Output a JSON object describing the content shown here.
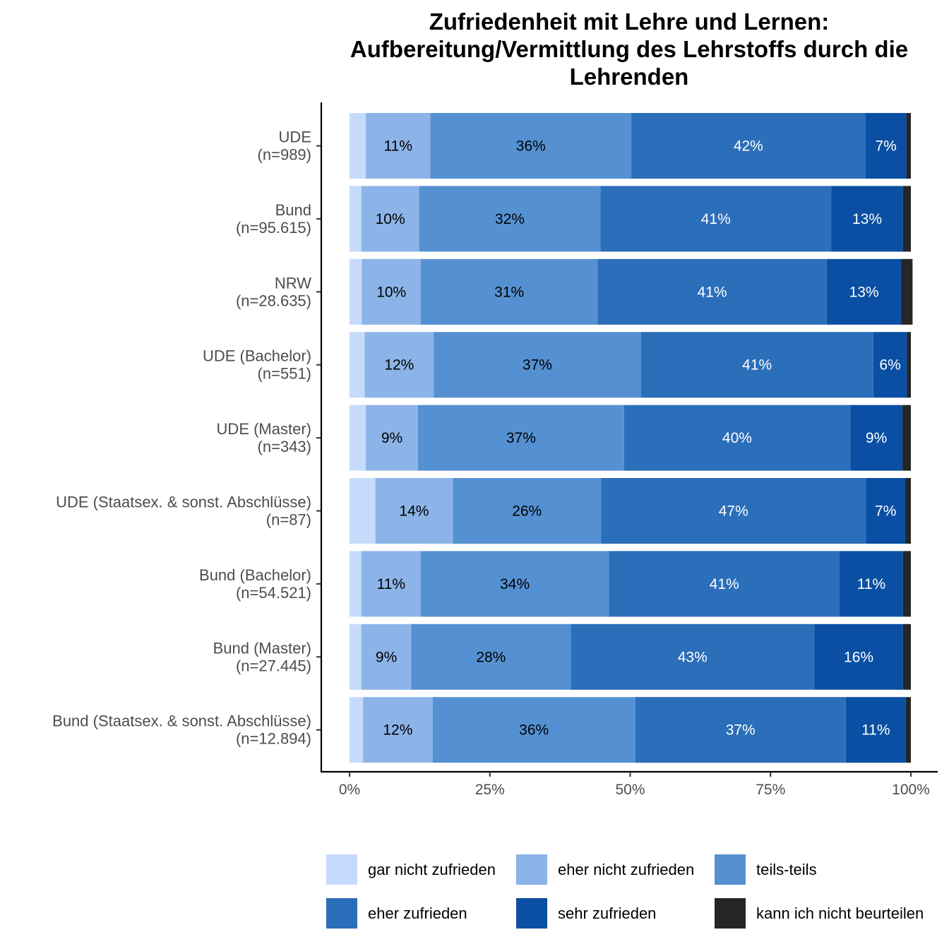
{
  "chart_data": {
    "type": "bar",
    "orientation": "horizontal",
    "stacked": "percent",
    "title": "Zufriedenheit mit Lehre und Lernen: Aufbereitung/Vermittlung des Lehrstoffs durch die Lehrenden",
    "title_lines": [
      "Zufriedenheit mit Lehre und Lernen:",
      "Aufbereitung/Vermittlung des Lehrstoffs durch die",
      "Lehrenden"
    ],
    "xlabel": "",
    "ylabel": "",
    "xlim": [
      0,
      100
    ],
    "x_ticks": [
      "0%",
      "25%",
      "50%",
      "75%",
      "100%"
    ],
    "grid": false,
    "legend_position": "bottom",
    "categories": [
      [
        "UDE",
        "(n=989)"
      ],
      [
        "Bund",
        "(n=95.615)"
      ],
      [
        "NRW",
        "(n=28.635)"
      ],
      [
        "UDE (Bachelor)",
        "(n=551)"
      ],
      [
        "UDE (Master)",
        "(n=343)"
      ],
      [
        "UDE (Staatsex. & sonst. Abschlüsse)",
        "(n=87)"
      ],
      [
        "Bund (Bachelor)",
        "(n=54.521)"
      ],
      [
        "Bund (Master)",
        "(n=27.445)"
      ],
      [
        "Bund (Staatsex. & sonst. Abschlüsse)",
        "(n=12.894)"
      ]
    ],
    "series": [
      {
        "name": "gar nicht zufrieden",
        "color": "#c6dbfc",
        "label_color": "#000000",
        "values": [
          2.9,
          2.1,
          2.2,
          2.7,
          2.9,
          4.6,
          2.1,
          2.1,
          2.4
        ],
        "labels": [
          "",
          "",
          "",
          "",
          "",
          "",
          "",
          "",
          ""
        ]
      },
      {
        "name": "eher nicht zufrieden",
        "color": "#8cb4e8",
        "label_color": "#000000",
        "values": [
          11.5,
          10.3,
          10.5,
          12.3,
          9.3,
          13.8,
          10.6,
          8.9,
          12.4
        ],
        "labels": [
          "11%",
          "10%",
          "10%",
          "12%",
          "9%",
          "14%",
          "11%",
          "9%",
          "12%"
        ]
      },
      {
        "name": "teils-teils",
        "color": "#5591d2",
        "label_color": "#000000",
        "values": [
          35.8,
          32.3,
          31.5,
          36.9,
          36.7,
          26.4,
          33.5,
          28.4,
          36.1
        ],
        "labels": [
          "36%",
          "32%",
          "31%",
          "37%",
          "37%",
          "26%",
          "34%",
          "28%",
          "36%"
        ]
      },
      {
        "name": "eher zufrieden",
        "color": "#2b6eb9",
        "label_color": "#ffffff",
        "values": [
          41.7,
          41.1,
          40.8,
          41.4,
          40.3,
          47.2,
          41.1,
          43.4,
          37.5
        ],
        "labels": [
          "42%",
          "41%",
          "41%",
          "41%",
          "40%",
          "47%",
          "41%",
          "43%",
          "37%"
        ]
      },
      {
        "name": "sehr zufrieden",
        "color": "#0a4fa3",
        "label_color": "#ffffff",
        "values": [
          7.3,
          12.8,
          13.3,
          6.0,
          9.3,
          7.0,
          11.3,
          15.8,
          10.7
        ],
        "labels": [
          "7%",
          "13%",
          "13%",
          "6%",
          "9%",
          "7%",
          "11%",
          "16%",
          "11%"
        ]
      },
      {
        "name": "kann ich nicht beurteilen",
        "color": "#262626",
        "label_color": "#ffffff",
        "values": [
          0.8,
          1.4,
          2.0,
          0.7,
          1.5,
          1.0,
          1.4,
          1.4,
          0.9
        ],
        "labels": [
          "",
          "",
          "",
          "",
          "",
          "",
          "",
          "",
          ""
        ]
      }
    ]
  }
}
